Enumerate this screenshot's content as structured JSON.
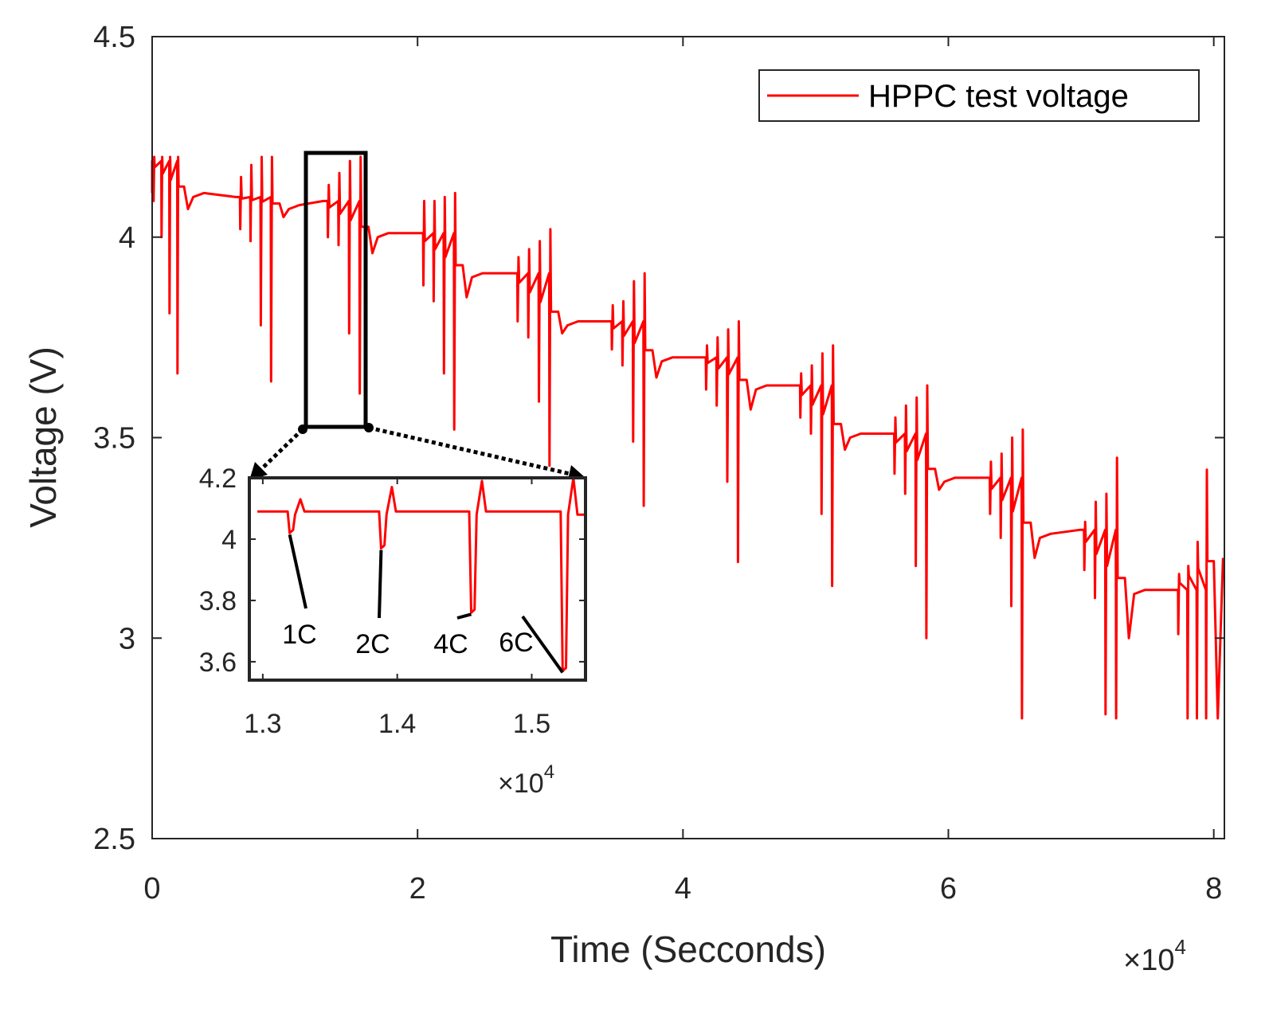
{
  "chart_data": {
    "type": "line",
    "title": "",
    "xlabel": "Time (Secconds)",
    "ylabel": "Voltage (V)",
    "x_exponent_label": "×10",
    "x_exponent_power": "4",
    "xlim": [
      0,
      80800
    ],
    "ylim": [
      2.5,
      4.5
    ],
    "xticks": [
      0,
      20000,
      40000,
      60000,
      80000
    ],
    "xtick_labels": [
      "0",
      "2",
      "4",
      "6",
      "8"
    ],
    "yticks": [
      2.5,
      3,
      3.5,
      4,
      4.5
    ],
    "ytick_labels": [
      "2.5",
      "3",
      "3.5",
      "4",
      "4.5"
    ],
    "grid": false,
    "legend": {
      "placement": "top-right",
      "entries": [
        "HPPC test voltage"
      ]
    },
    "series": [
      {
        "name": "HPPC test voltage",
        "color": "#ff0000",
        "segments": [
          {
            "start": 0,
            "end": 2400,
            "rest": 4.19,
            "discharge_mins": [
              4.09,
              4.0,
              3.81,
              3.66
            ],
            "charge_peaks": [
              4.2,
              4.2,
              4.2,
              4.2
            ],
            "post_level": 4.11,
            "dip": 4.07
          },
          {
            "start": 6500,
            "end": 9600,
            "rest": 4.1,
            "discharge_mins": [
              4.02,
              3.99,
              3.78,
              3.64
            ],
            "charge_peaks": [
              4.15,
              4.18,
              4.2,
              4.2
            ],
            "post_level": 4.08,
            "dip": 4.05
          },
          {
            "start": 13100,
            "end": 16300,
            "rest": 4.09,
            "discharge_mins": [
              4.0,
              3.98,
              3.76,
              3.61
            ],
            "charge_peaks": [
              4.13,
              4.16,
              4.19,
              4.2
            ],
            "post_level": 4.01,
            "dip": 3.96
          },
          {
            "start": 20300,
            "end": 23400,
            "rest": 4.01,
            "discharge_mins": [
              3.88,
              3.84,
              3.66,
              3.52
            ],
            "charge_peaks": [
              4.09,
              4.09,
              4.1,
              4.11
            ],
            "post_level": 3.91,
            "dip": 3.85
          },
          {
            "start": 27400,
            "end": 30600,
            "rest": 3.91,
            "discharge_mins": [
              3.79,
              3.75,
              3.59,
              3.43
            ],
            "charge_peaks": [
              3.95,
              3.97,
              3.99,
              4.02
            ],
            "post_level": 3.79,
            "dip": 3.76
          },
          {
            "start": 34500,
            "end": 37700,
            "rest": 3.79,
            "discharge_mins": [
              3.72,
              3.68,
              3.49,
              3.33
            ],
            "charge_peaks": [
              3.83,
              3.84,
              3.89,
              3.91
            ],
            "post_level": 3.7,
            "dip": 3.65
          },
          {
            "start": 41600,
            "end": 44800,
            "rest": 3.7,
            "discharge_mins": [
              3.62,
              3.58,
              3.39,
              3.19
            ],
            "charge_peaks": [
              3.73,
              3.75,
              3.77,
              3.79
            ],
            "post_level": 3.63,
            "dip": 3.57
          },
          {
            "start": 48700,
            "end": 51900,
            "rest": 3.63,
            "discharge_mins": [
              3.55,
              3.51,
              3.31,
              3.13
            ],
            "charge_peaks": [
              3.66,
              3.68,
              3.71,
              3.73
            ],
            "post_level": 3.51,
            "dip": 3.47
          },
          {
            "start": 55800,
            "end": 59000,
            "rest": 3.51,
            "discharge_mins": [
              3.41,
              3.36,
              3.18,
              3.0
            ],
            "charge_peaks": [
              3.55,
              3.58,
              3.6,
              3.63
            ],
            "post_level": 3.4,
            "dip": 3.37
          },
          {
            "start": 63000,
            "end": 66200,
            "rest": 3.4,
            "discharge_mins": [
              3.31,
              3.25,
              3.08,
              2.8
            ],
            "charge_peaks": [
              3.44,
              3.46,
              3.5,
              3.52
            ],
            "post_level": 3.26,
            "dip": 3.2
          },
          {
            "start": 70100,
            "end": 73300,
            "rest": 3.27,
            "discharge_mins": [
              3.17,
              3.1,
              2.81,
              2.8
            ],
            "charge_peaks": [
              3.29,
              3.34,
              3.36,
              3.45
            ],
            "post_level": 3.12,
            "dip": 3.0
          },
          {
            "start": 77200,
            "end": 80000,
            "rest": 3.12,
            "discharge_mins": [
              3.01,
              2.8,
              2.8,
              2.8
            ],
            "charge_peaks": [
              3.16,
              3.18,
              3.24,
              3.42
            ],
            "post_level": 3.21,
            "dip": 2.8
          }
        ]
      }
    ],
    "inset": {
      "xlim": [
        12900,
        15400
      ],
      "ylim": [
        3.54,
        4.2
      ],
      "xticks": [
        13000,
        14000,
        15000
      ],
      "xtick_labels": [
        "1.3",
        "1.4",
        "1.5"
      ],
      "yticks": [
        3.6,
        3.8,
        4,
        4.2
      ],
      "ytick_labels": [
        "3.6",
        "3.8",
        "4",
        "4.2"
      ],
      "x_exponent_label": "×10",
      "x_exponent_power": "4",
      "baseline": 4.09,
      "pulses": [
        {
          "label": "1C",
          "t": 13200,
          "min": 4.02,
          "peak": 4.13,
          "after": 4.09
        },
        {
          "label": "2C",
          "t": 13880,
          "min": 3.97,
          "peak": 4.17,
          "after": 4.09
        },
        {
          "label": "4C",
          "t": 14550,
          "min": 3.76,
          "peak": 4.19,
          "after": 4.09
        },
        {
          "label": "6C",
          "t": 15230,
          "min": 3.57,
          "peak": 4.2,
          "after": 4.08
        }
      ]
    }
  }
}
